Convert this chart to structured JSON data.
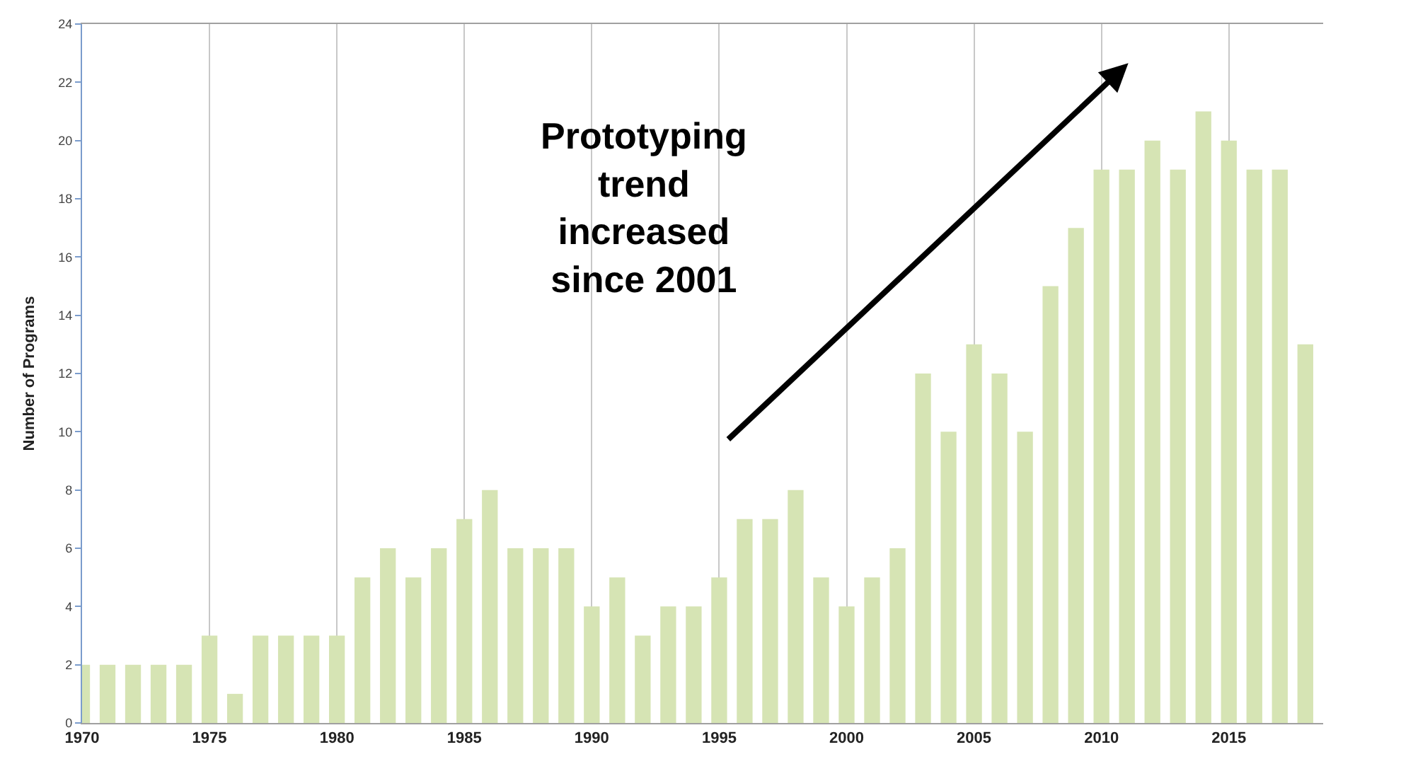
{
  "chart_data": {
    "type": "bar",
    "ylabel": "Number of Programs",
    "x": [
      1970,
      1971,
      1972,
      1973,
      1974,
      1975,
      1976,
      1977,
      1978,
      1979,
      1980,
      1981,
      1982,
      1983,
      1984,
      1985,
      1986,
      1987,
      1988,
      1989,
      1990,
      1991,
      1992,
      1993,
      1994,
      1995,
      1996,
      1997,
      1998,
      1999,
      2000,
      2001,
      2002,
      2003,
      2004,
      2005,
      2006,
      2007,
      2008,
      2009,
      2010,
      2011,
      2012,
      2013,
      2014,
      2015,
      2016,
      2017,
      2018
    ],
    "values": [
      2,
      2,
      2,
      2,
      2,
      3,
      1,
      3,
      3,
      3,
      3,
      5,
      6,
      5,
      6,
      7,
      8,
      6,
      6,
      6,
      4,
      5,
      3,
      4,
      4,
      5,
      7,
      7,
      8,
      5,
      4,
      5,
      6,
      12,
      10,
      13,
      12,
      10,
      15,
      17,
      19,
      19,
      20,
      19,
      21,
      20,
      19,
      19,
      13
    ],
    "color": "#d6e4b4",
    "xlim": [
      1970,
      2018.7
    ],
    "xticks": [
      1970,
      1975,
      1980,
      1985,
      1990,
      1995,
      2000,
      2005,
      2010,
      2015
    ],
    "ylim": [
      0,
      24
    ],
    "yticks": [
      0,
      2,
      4,
      6,
      8,
      10,
      12,
      14,
      16,
      18,
      20,
      22,
      24
    ],
    "grid": "x",
    "annotations": [
      "Prototyping\ntrend\nincreased\nsince 2001"
    ]
  }
}
